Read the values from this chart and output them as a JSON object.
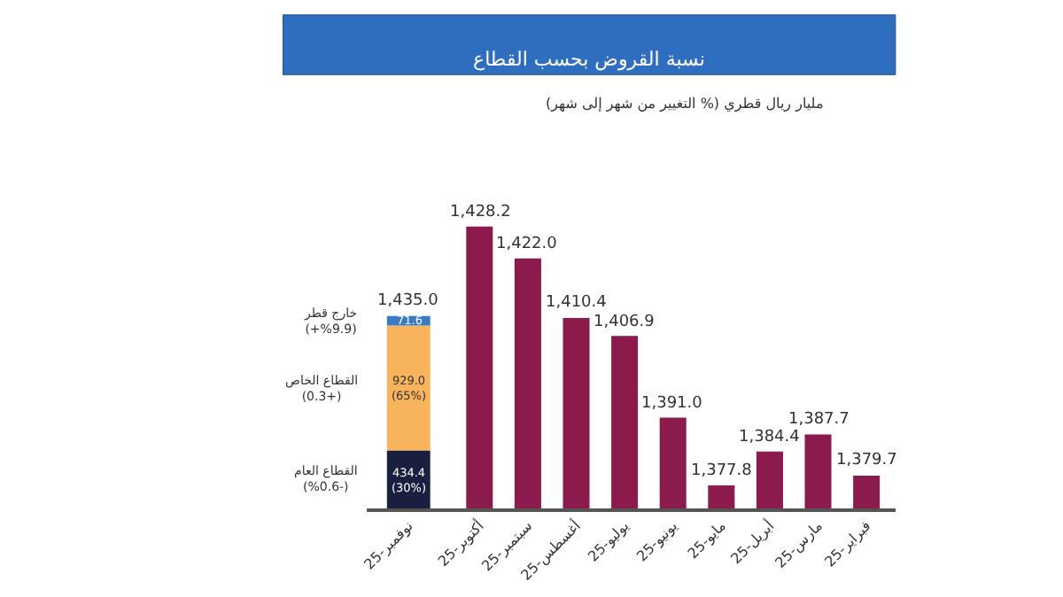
{
  "chart_data": [
    {
      "type": "bar",
      "stacked": true,
      "categories": [
        "نوفمبر-25"
      ],
      "series": [
        {
          "name": "القطاع العام\n(%0.6-)",
          "color": "#1b1f3f",
          "values": [
            434.4
          ],
          "value_labels": [
            "434.4\n(30%)"
          ]
        },
        {
          "name": "القطاع الخاص\n(0.3+)",
          "color": "#f7b45c",
          "values": [
            929.0
          ],
          "value_labels": [
            "929.0\n(65%)"
          ]
        },
        {
          "name": "خارج قطر\n(+%9.9)",
          "color": "#3a7cc3",
          "values": [
            71.6
          ],
          "value_labels": [
            "71.6"
          ]
        }
      ],
      "totals": [
        "1,435.0"
      ],
      "tick_labels": "x",
      "legend": false
    },
    {
      "type": "bar",
      "title": "نسبة القروض بحسب القطاع",
      "subtitle": "مليار ريال قطري (% التغيير من شهر إلى شهر)",
      "categories": [
        "أكتوبر-25",
        "سبتمبر-25",
        "أغسطس-25",
        "يوليو-25",
        "يونيو-25",
        "مايو-25",
        "أبريل-25",
        "مارس-25",
        "فبراير-25"
      ],
      "values": [
        1428.2,
        1422.0,
        1410.4,
        1406.9,
        1391.0,
        1377.8,
        1384.4,
        1387.7,
        1379.7
      ],
      "color": "#8b1b4c",
      "value_labels": [
        "1,428.2",
        "1,422.0",
        "1,410.4",
        "1,406.9",
        "1,391.0",
        "1,377.8",
        "1,384.4",
        "1,387.7",
        "1,379.7"
      ],
      "tick_labels": "x",
      "legend": false
    }
  ]
}
